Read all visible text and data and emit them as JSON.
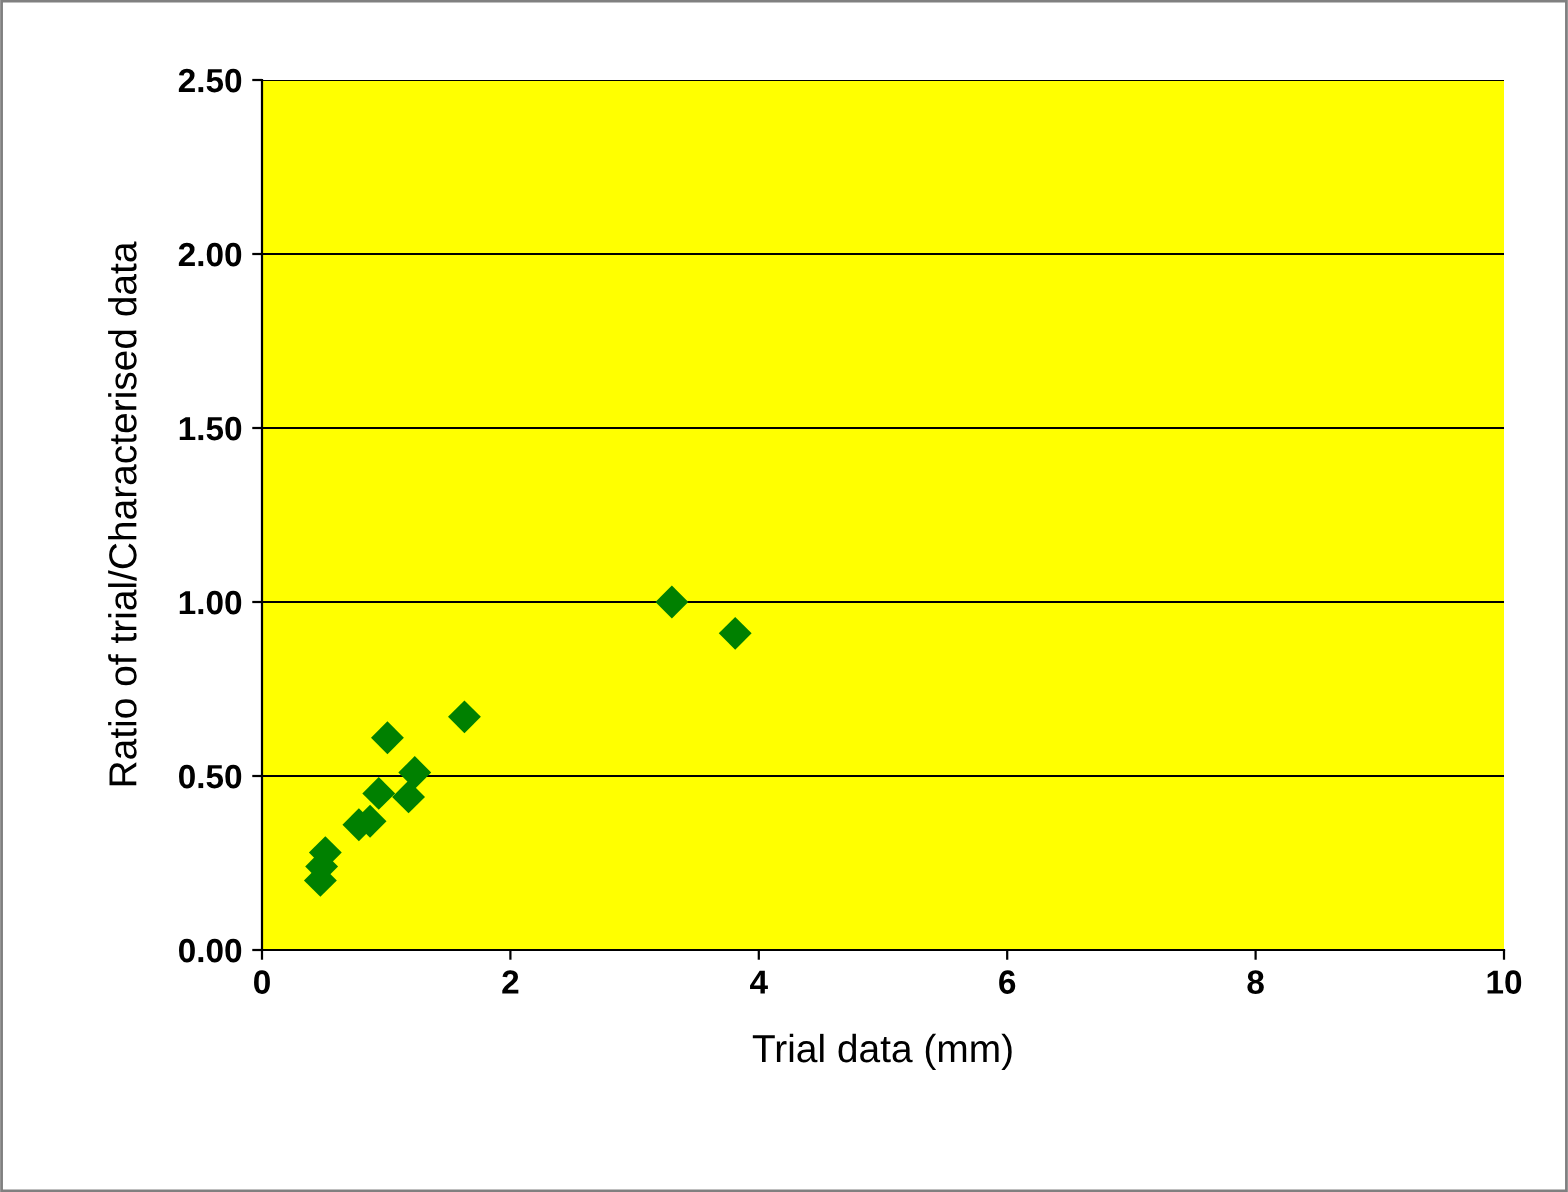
{
  "chart_data": {
    "type": "scatter",
    "xlabel": "Trial data (mm)",
    "ylabel": "Ratio of trial/Characterised data",
    "x": [
      3.3,
      3.81,
      1.63,
      1.01,
      1.23,
      0.94,
      1.18,
      0.87,
      0.78,
      0.51,
      0.48,
      0.47
    ],
    "series": [
      {
        "color": "#008000",
        "values": [
          1.0,
          0.91,
          0.67,
          0.61,
          0.51,
          0.45,
          0.44,
          0.37,
          0.36,
          0.28,
          0.24,
          0.2
        ]
      }
    ],
    "marker": "diamond",
    "grid": "y",
    "legend": false,
    "xlim": [
      0,
      10
    ],
    "xticks": [
      0,
      2,
      4,
      6,
      8,
      10
    ],
    "ylim": [
      0,
      2.5
    ],
    "yticks": [
      {
        "value": 0,
        "label": "0.00"
      },
      {
        "value": 0.5,
        "label": "0.50"
      },
      {
        "value": 1,
        "label": "1.00"
      },
      {
        "value": 1.5,
        "label": "1.50"
      },
      {
        "value": 2,
        "label": "2.00"
      },
      {
        "value": 2.5,
        "label": "2.50"
      }
    ]
  }
}
